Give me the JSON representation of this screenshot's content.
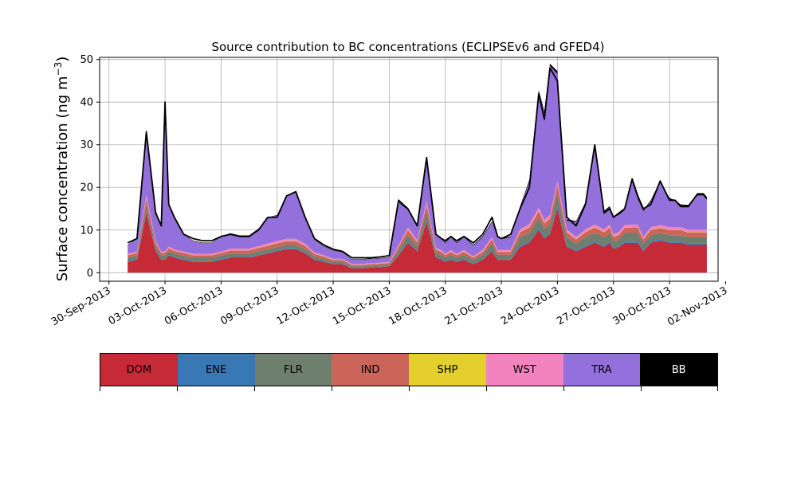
{
  "chart_data": {
    "type": "area",
    "stacked": true,
    "title": "Source contribution to BC concentrations (ECLIPSEv6 and GFED4)",
    "ylabel_main": "Surface concentration (ng m",
    "ylabel_sup": "−3",
    "ylabel_close": ")",
    "xlabel": "",
    "ylim": [
      -2,
      50.5
    ],
    "yticks": [
      0,
      10,
      20,
      30,
      40,
      50
    ],
    "xlim_days": [
      -0.5,
      32.6
    ],
    "xtick_labels": [
      "30-Sep-2013",
      "03-Oct-2013",
      "06-Oct-2013",
      "09-Oct-2013",
      "12-Oct-2013",
      "15-Oct-2013",
      "18-Oct-2013",
      "21-Oct-2013",
      "24-Oct-2013",
      "27-Oct-2013",
      "30-Oct-2013",
      "02-Nov-2013"
    ],
    "xtick_days": [
      0,
      3,
      6,
      9,
      12,
      15,
      18,
      21,
      24,
      27,
      30,
      33
    ],
    "grid": true,
    "total_outline_color": "#000000",
    "series": [
      {
        "name": "DOM",
        "color": "#c62a36"
      },
      {
        "name": "ENE",
        "color": "#3878b4"
      },
      {
        "name": "FLR",
        "color": "#6f7f6e"
      },
      {
        "name": "IND",
        "color": "#cb6459"
      },
      {
        "name": "SHP",
        "color": "#e4cf2e"
      },
      {
        "name": "WST",
        "color": "#f283bf"
      },
      {
        "name": "TRA",
        "color": "#9370db"
      },
      {
        "name": "BB",
        "color": "#000000"
      }
    ],
    "x_days": [
      1.0,
      1.5,
      2.0,
      2.5,
      2.8,
      3.0,
      3.2,
      3.5,
      4.0,
      4.5,
      5.0,
      5.5,
      6.0,
      6.5,
      7.0,
      7.5,
      8.0,
      8.5,
      9.0,
      9.5,
      10.0,
      10.5,
      11.0,
      11.5,
      12.0,
      12.5,
      13.0,
      13.5,
      14.0,
      14.5,
      15.0,
      15.5,
      16.0,
      16.5,
      17.0,
      17.5,
      17.8,
      18.0,
      18.3,
      18.6,
      19.0,
      19.5,
      20.0,
      20.5,
      20.8,
      21.0,
      21.5,
      22.0,
      22.5,
      23.0,
      23.3,
      23.6,
      24.0,
      24.5,
      25.0,
      25.5,
      26.0,
      26.5,
      26.8,
      27.0,
      27.3,
      27.6,
      28.0,
      28.3,
      28.6,
      29.0,
      29.5,
      30.0,
      30.3,
      30.6,
      31.0,
      31.5,
      31.8,
      32.0
    ],
    "dom": [
      2.5,
      3.0,
      14.0,
      5.0,
      3.0,
      3.0,
      4.0,
      3.5,
      3.0,
      2.5,
      2.5,
      2.5,
      3.0,
      3.5,
      3.5,
      3.5,
      4.0,
      4.5,
      5.0,
      5.5,
      5.5,
      4.5,
      3.0,
      2.5,
      2.0,
      2.0,
      1.0,
      1.0,
      1.2,
      1.3,
      1.5,
      4.0,
      7.0,
      5.0,
      12.0,
      3.5,
      3.0,
      2.5,
      3.0,
      2.5,
      3.0,
      2.0,
      3.0,
      5.0,
      3.0,
      3.0,
      3.0,
      6.0,
      7.0,
      10.0,
      8.0,
      9.0,
      15.0,
      6.0,
      5.0,
      6.0,
      7.0,
      6.0,
      7.0,
      5.5,
      6.0,
      7.0,
      7.0,
      7.0,
      5.0,
      7.0,
      7.5,
      7.0,
      7.0,
      7.0,
      6.5,
      6.5,
      6.5,
      6.5
    ],
    "ene": [
      0.2,
      0.2,
      0.4,
      0.2,
      0.2,
      0.2,
      0.2,
      0.2,
      0.2,
      0.2,
      0.2,
      0.2,
      0.2,
      0.2,
      0.2,
      0.2,
      0.2,
      0.2,
      0.2,
      0.2,
      0.2,
      0.2,
      0.2,
      0.2,
      0.1,
      0.1,
      0.1,
      0.1,
      0.1,
      0.1,
      0.1,
      0.2,
      0.3,
      0.2,
      0.4,
      0.2,
      0.2,
      0.2,
      0.2,
      0.2,
      0.2,
      0.2,
      0.2,
      0.3,
      0.2,
      0.2,
      0.2,
      0.3,
      0.3,
      0.4,
      0.3,
      0.3,
      0.5,
      0.3,
      0.3,
      0.3,
      0.3,
      0.3,
      0.3,
      0.3,
      0.3,
      0.3,
      0.3,
      0.3,
      0.3,
      0.3,
      0.3,
      0.3,
      0.3,
      0.3,
      0.3,
      0.3,
      0.3,
      0.3
    ],
    "flr": [
      0.8,
      0.8,
      1.5,
      1.0,
      0.8,
      0.8,
      0.8,
      0.8,
      0.8,
      0.8,
      0.8,
      0.8,
      0.8,
      0.8,
      0.8,
      0.8,
      0.8,
      0.8,
      0.8,
      0.8,
      0.8,
      0.8,
      0.6,
      0.6,
      0.5,
      0.5,
      0.4,
      0.4,
      0.4,
      0.4,
      0.4,
      1.0,
      1.5,
      1.0,
      2.0,
      1.0,
      1.0,
      0.8,
      1.0,
      0.8,
      1.0,
      0.8,
      1.0,
      1.5,
      1.0,
      1.0,
      1.0,
      2.0,
      2.0,
      2.5,
      2.0,
      2.0,
      3.0,
      2.0,
      1.5,
      2.0,
      2.0,
      2.0,
      2.0,
      1.5,
      1.5,
      2.0,
      2.0,
      2.0,
      1.5,
      1.5,
      1.5,
      1.5,
      1.5,
      1.5,
      1.5,
      1.5,
      1.5,
      1.5
    ],
    "ind": [
      0.6,
      0.6,
      1.5,
      0.8,
      0.6,
      0.6,
      0.7,
      0.6,
      0.6,
      0.6,
      0.6,
      0.6,
      0.6,
      0.7,
      0.7,
      0.7,
      0.8,
      0.8,
      0.9,
      0.9,
      0.9,
      0.8,
      0.6,
      0.5,
      0.4,
      0.4,
      0.3,
      0.3,
      0.3,
      0.3,
      0.3,
      0.8,
      1.2,
      0.9,
      1.5,
      0.7,
      0.7,
      0.6,
      0.7,
      0.6,
      0.7,
      0.5,
      0.7,
      1.0,
      0.7,
      0.7,
      0.7,
      1.2,
      1.3,
      1.5,
      1.3,
      1.4,
      2.0,
      1.2,
      1.0,
      1.2,
      1.3,
      1.2,
      1.3,
      1.1,
      1.1,
      1.2,
      1.3,
      1.3,
      1.0,
      1.2,
      1.2,
      1.2,
      1.2,
      1.2,
      1.1,
      1.1,
      1.1,
      1.1
    ],
    "shp": [
      0.05,
      0.05,
      0.1,
      0.05,
      0.05,
      0.05,
      0.05,
      0.05,
      0.05,
      0.05,
      0.05,
      0.05,
      0.05,
      0.05,
      0.05,
      0.05,
      0.05,
      0.05,
      0.05,
      0.05,
      0.05,
      0.05,
      0.05,
      0.05,
      0.05,
      0.05,
      0.05,
      0.05,
      0.05,
      0.05,
      0.05,
      0.05,
      0.1,
      0.05,
      0.1,
      0.05,
      0.05,
      0.05,
      0.05,
      0.05,
      0.05,
      0.05,
      0.05,
      0.05,
      0.05,
      0.05,
      0.05,
      0.1,
      0.1,
      0.1,
      0.1,
      0.1,
      0.1,
      0.1,
      0.1,
      0.1,
      0.1,
      0.1,
      0.1,
      0.1,
      0.1,
      0.1,
      0.1,
      0.1,
      0.1,
      0.1,
      0.1,
      0.1,
      0.1,
      0.1,
      0.1,
      0.1,
      0.1,
      0.1
    ],
    "wst": [
      0.3,
      0.3,
      0.8,
      0.4,
      0.3,
      0.3,
      0.4,
      0.3,
      0.3,
      0.3,
      0.3,
      0.3,
      0.3,
      0.4,
      0.4,
      0.4,
      0.4,
      0.5,
      0.5,
      0.5,
      0.5,
      0.4,
      0.3,
      0.3,
      0.2,
      0.2,
      0.2,
      0.2,
      0.2,
      0.2,
      0.2,
      0.4,
      0.6,
      0.5,
      0.8,
      0.4,
      0.4,
      0.3,
      0.4,
      0.3,
      0.4,
      0.3,
      0.4,
      0.5,
      0.4,
      0.4,
      0.4,
      0.6,
      0.7,
      0.8,
      0.7,
      0.7,
      1.0,
      0.6,
      0.5,
      0.6,
      0.6,
      0.6,
      0.6,
      0.5,
      0.6,
      0.6,
      0.6,
      0.6,
      0.5,
      0.6,
      0.6,
      0.6,
      0.6,
      0.6,
      0.6,
      0.6,
      0.6,
      0.6
    ],
    "tra": [
      2.0,
      3.0,
      15.0,
      7.0,
      6.0,
      30.0,
      10.0,
      7.0,
      4.0,
      3.0,
      2.5,
      2.5,
      3.5,
      3.5,
      3.0,
      3.0,
      4.0,
      6.0,
      6.0,
      10.0,
      11.0,
      6.0,
      3.0,
      2.0,
      2.0,
      1.5,
      1.0,
      1.0,
      1.0,
      1.0,
      1.0,
      10.0,
      4.0,
      3.0,
      10.0,
      3.0,
      2.5,
      2.5,
      3.0,
      2.5,
      3.0,
      2.5,
      3.0,
      3.5,
      3.0,
      2.5,
      3.0,
      5.0,
      10.0,
      27.0,
      25.0,
      35.0,
      25.0,
      2.0,
      3.5,
      6.0,
      18.0,
      4.0,
      4.0,
      4.0,
      4.0,
      3.5,
      10.0,
      6.0,
      6.0,
      6.0,
      10.0,
      6.5,
      6.0,
      5.0,
      5.5,
      8.0,
      8.0,
      7.0
    ],
    "bb": [
      0.1,
      0.1,
      0.4,
      0.1,
      0.1,
      0.1,
      0.1,
      0.1,
      0.1,
      0.1,
      0.1,
      0.1,
      0.1,
      0.1,
      0.1,
      0.1,
      0.1,
      0.1,
      0.1,
      0.1,
      0.1,
      0.1,
      0.1,
      0.1,
      0.1,
      0.1,
      0.1,
      0.1,
      0.1,
      0.1,
      0.1,
      0.2,
      0.3,
      0.2,
      0.4,
      0.2,
      0.2,
      0.2,
      0.2,
      0.2,
      0.2,
      0.2,
      0.2,
      0.2,
      0.2,
      0.2,
      0.2,
      0.3,
      0.4,
      0.5,
      0.5,
      0.5,
      0.7,
      0.3,
      0.2,
      0.3,
      0.4,
      0.3,
      0.3,
      0.3,
      0.3,
      0.3,
      0.3,
      0.3,
      0.3,
      0.3,
      0.3,
      0.3,
      0.3,
      0.3,
      0.3,
      0.3,
      0.3,
      0.3
    ],
    "total_outline": [
      7.0,
      8.0,
      33.0,
      14.0,
      11.0,
      40.0,
      16.0,
      13.0,
      9.0,
      8.0,
      7.5,
      7.5,
      8.5,
      9.0,
      8.5,
      8.5,
      10.0,
      13.0,
      13.0,
      18.0,
      19.0,
      13.0,
      8.0,
      6.5,
      5.5,
      5.0,
      3.5,
      3.5,
      3.5,
      3.7,
      4.0,
      17.0,
      15.0,
      11.0,
      27.0,
      9.0,
      8.0,
      7.5,
      8.5,
      7.5,
      8.5,
      7.0,
      9.0,
      13.0,
      8.5,
      8.0,
      9.0,
      15.0,
      20.0,
      42.0,
      36.0,
      48.0,
      45.0,
      13.0,
      11.0,
      16.0,
      30.0,
      14.0,
      15.0,
      13.0,
      14.0,
      15.0,
      22.0,
      18.0,
      15.0,
      16.0,
      21.5,
      17.0,
      17.0,
      15.5,
      15.5,
      18.5,
      18.5,
      17.5
    ]
  }
}
